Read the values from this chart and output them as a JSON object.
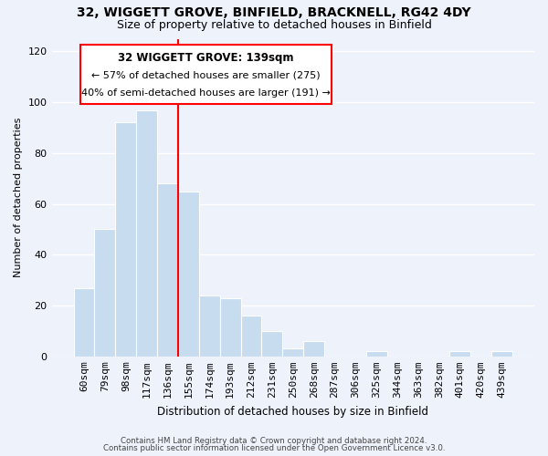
{
  "title1": "32, WIGGETT GROVE, BINFIELD, BRACKNELL, RG42 4DY",
  "title2": "Size of property relative to detached houses in Binfield",
  "xlabel": "Distribution of detached houses by size in Binfield",
  "ylabel": "Number of detached properties",
  "bar_labels": [
    "60sqm",
    "79sqm",
    "98sqm",
    "117sqm",
    "136sqm",
    "155sqm",
    "174sqm",
    "193sqm",
    "212sqm",
    "231sqm",
    "250sqm",
    "268sqm",
    "287sqm",
    "306sqm",
    "325sqm",
    "344sqm",
    "363sqm",
    "382sqm",
    "401sqm",
    "420sqm",
    "439sqm"
  ],
  "bar_values": [
    27,
    50,
    92,
    97,
    68,
    65,
    24,
    23,
    16,
    10,
    3,
    6,
    0,
    0,
    2,
    0,
    0,
    0,
    2,
    0,
    2
  ],
  "bar_color": "#c8dcf0",
  "red_line_bar_index": 4,
  "annotation_line1": "32 WIGGETT GROVE: 139sqm",
  "annotation_line2": "← 57% of detached houses are smaller (275)",
  "annotation_line3": "40% of semi-detached houses are larger (191) →",
  "ylim": [
    0,
    125
  ],
  "yticks": [
    0,
    20,
    40,
    60,
    80,
    100,
    120
  ],
  "footer1": "Contains HM Land Registry data © Crown copyright and database right 2024.",
  "footer2": "Contains public sector information licensed under the Open Government Licence v3.0.",
  "background_color": "#eef2fb",
  "grid_color": "#ffffff",
  "title1_fontsize": 10,
  "title2_fontsize": 9
}
